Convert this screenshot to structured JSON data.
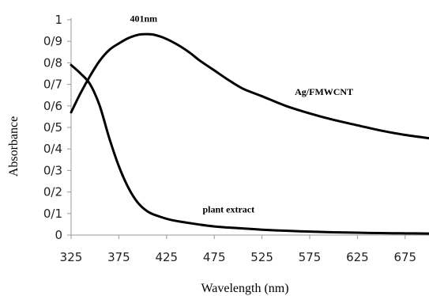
{
  "chart_data": {
    "type": "line",
    "xlabel": "Wavelength (nm)",
    "ylabel": "Absorbance",
    "xlim": [
      325,
      700
    ],
    "ylim": [
      0,
      1
    ],
    "x_ticks": [
      "325",
      "375",
      "425",
      "475",
      "525",
      "575",
      "625",
      "675"
    ],
    "x_tick_values": [
      325,
      375,
      425,
      475,
      525,
      575,
      625,
      675
    ],
    "y_ticks": [
      "0",
      "0/1",
      "0/2",
      "0/3",
      "0/4",
      "0/5",
      "0/6",
      "0/7",
      "0/8",
      "0/9",
      "1"
    ],
    "y_tick_values": [
      0,
      0.1,
      0.2,
      0.3,
      0.4,
      0.5,
      0.6,
      0.7,
      0.8,
      0.9,
      1
    ],
    "grid": false,
    "series": [
      {
        "name": "Ag/FMWCNT",
        "x": [
          325,
          335,
          345,
          355,
          365,
          375,
          385,
          395,
          401,
          410,
          420,
          430,
          440,
          450,
          460,
          475,
          490,
          505,
          525,
          550,
          575,
          600,
          625,
          650,
          675,
          700
        ],
        "y": [
          0.57,
          0.66,
          0.74,
          0.81,
          0.86,
          0.89,
          0.915,
          0.93,
          0.933,
          0.932,
          0.92,
          0.9,
          0.875,
          0.845,
          0.81,
          0.765,
          0.72,
          0.68,
          0.645,
          0.6,
          0.565,
          0.535,
          0.51,
          0.485,
          0.465,
          0.45
        ]
      },
      {
        "name": "plant extract",
        "x": [
          325,
          335,
          345,
          355,
          365,
          375,
          385,
          395,
          405,
          415,
          430,
          450,
          475,
          500,
          525,
          550,
          575,
          600,
          625,
          650,
          675,
          700
        ],
        "y": [
          0.79,
          0.75,
          0.7,
          0.6,
          0.45,
          0.32,
          0.22,
          0.15,
          0.11,
          0.09,
          0.07,
          0.055,
          0.04,
          0.032,
          0.025,
          0.02,
          0.016,
          0.013,
          0.011,
          0.009,
          0.008,
          0.007
        ]
      }
    ],
    "annotations": [
      {
        "text": "401nm",
        "x": 401,
        "y": 0.99
      },
      {
        "text": "Ag/FMWCNT",
        "x": 590,
        "y": 0.65
      },
      {
        "text": "plant extract",
        "x": 490,
        "y": 0.105
      }
    ]
  }
}
